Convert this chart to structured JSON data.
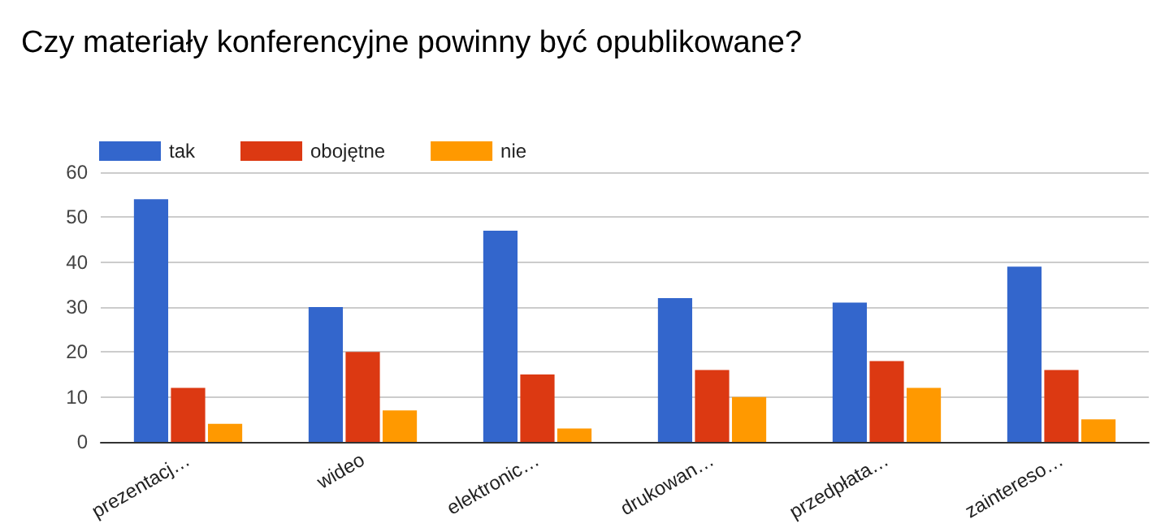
{
  "chart_data": {
    "type": "bar",
    "title": "Czy materiały konferencyjne powinny być opublikowane?",
    "categories": [
      "prezentacj…",
      "wideo",
      "elektronic…",
      "drukowan…",
      "przedpłata…",
      "zaintereso…"
    ],
    "series": [
      {
        "name": "tak",
        "color": "#3366cc",
        "values": [
          54,
          30,
          47,
          32,
          31,
          39
        ]
      },
      {
        "name": "obojętne",
        "color": "#dc3912",
        "values": [
          12,
          20,
          15,
          16,
          18,
          16
        ]
      },
      {
        "name": "nie",
        "color": "#ff9900",
        "values": [
          4,
          7,
          3,
          10,
          12,
          5
        ]
      }
    ],
    "ylim": [
      0,
      60
    ],
    "yticks": [
      0,
      10,
      20,
      30,
      40,
      50,
      60
    ],
    "grid": "y",
    "legend": "top left"
  }
}
